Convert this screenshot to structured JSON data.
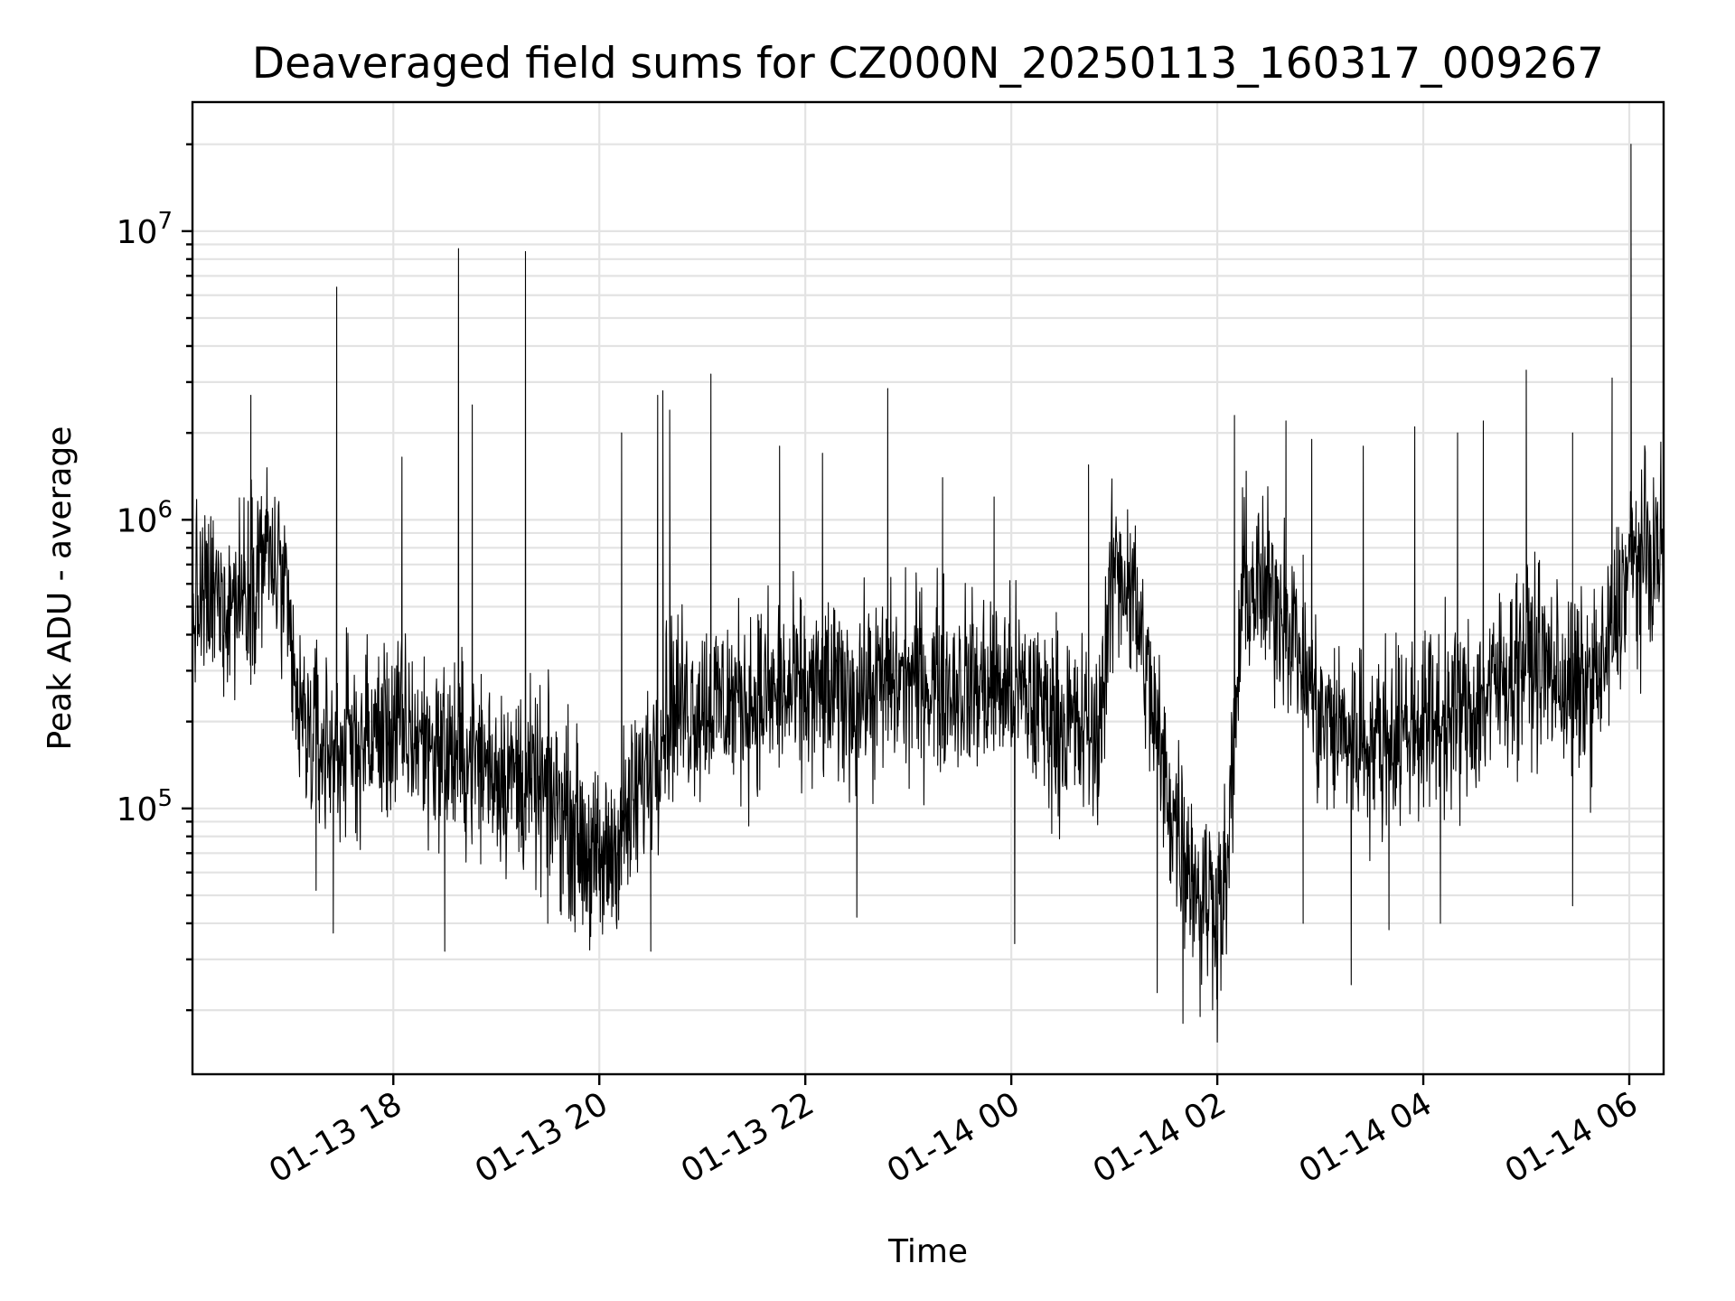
{
  "chart_data": {
    "type": "line",
    "title": "Deaveraged field sums for CZ000N_20250113_160317_009267",
    "xlabel": "Time",
    "ylabel": "Peak ADU - average",
    "yscale": "log",
    "ylim": [
      12000,
      28000000
    ],
    "xlim": [
      "2025-01-13 16:03",
      "2025-01-14 06:20"
    ],
    "grid": true,
    "x_ticks": [
      {
        "value": "2025-01-13 18:00",
        "label": "01-13 18"
      },
      {
        "value": "2025-01-13 20:00",
        "label": "01-13 20"
      },
      {
        "value": "2025-01-13 22:00",
        "label": "01-13 22"
      },
      {
        "value": "2025-01-14 00:00",
        "label": "01-14 00"
      },
      {
        "value": "2025-01-14 02:00",
        "label": "01-14 02"
      },
      {
        "value": "2025-01-14 04:00",
        "label": "01-14 04"
      },
      {
        "value": "2025-01-14 06:00",
        "label": "01-14 06"
      }
    ],
    "y_ticks": [
      {
        "value": 100000,
        "base": "10",
        "exp": "5"
      },
      {
        "value": 1000000,
        "base": "10",
        "exp": "6"
      },
      {
        "value": 10000000,
        "base": "10",
        "exp": "7"
      }
    ],
    "series": [
      {
        "color": "#000000",
        "x": [
          "2025-01-13 16:03",
          "2025-01-13 16:30",
          "2025-01-13 16:45",
          "2025-01-13 16:55",
          "2025-01-13 17:05",
          "2025-01-13 17:20",
          "2025-01-13 17:40",
          "2025-01-13 18:00",
          "2025-01-13 18:20",
          "2025-01-13 18:40",
          "2025-01-13 19:00",
          "2025-01-13 19:20",
          "2025-01-13 19:40",
          "2025-01-13 20:00",
          "2025-01-13 20:20",
          "2025-01-13 20:40",
          "2025-01-13 21:00",
          "2025-01-13 21:30",
          "2025-01-13 22:00",
          "2025-01-13 22:30",
          "2025-01-13 23:00",
          "2025-01-13 23:30",
          "2025-01-14 00:00",
          "2025-01-14 00:30",
          "2025-01-14 00:50",
          "2025-01-14 01:00",
          "2025-01-14 01:10",
          "2025-01-14 01:30",
          "2025-01-14 01:50",
          "2025-01-14 02:05",
          "2025-01-14 02:15",
          "2025-01-14 02:40",
          "2025-01-14 03:00",
          "2025-01-14 03:30",
          "2025-01-14 04:00",
          "2025-01-14 04:30",
          "2025-01-14 05:00",
          "2025-01-14 05:30",
          "2025-01-14 05:45",
          "2025-01-14 06:00",
          "2025-01-14 06:20"
        ],
        "y": [
          500000,
          550000,
          800000,
          600000,
          200000,
          160000,
          170000,
          190000,
          170000,
          150000,
          140000,
          120000,
          100000,
          60000,
          100000,
          230000,
          230000,
          240000,
          250000,
          250000,
          280000,
          270000,
          260000,
          200000,
          170000,
          700000,
          600000,
          120000,
          50000,
          50000,
          600000,
          500000,
          200000,
          170000,
          200000,
          220000,
          350000,
          250000,
          300000,
          700000,
          750000
        ],
        "noise_amplitude_decades": 0.3,
        "spikes": [
          {
            "x": "2025-01-13 16:37",
            "y": 2700000
          },
          {
            "x": "2025-01-13 17:27",
            "y": 6400000
          },
          {
            "x": "2025-01-13 18:05",
            "y": 1650000
          },
          {
            "x": "2025-01-13 18:38",
            "y": 8700000
          },
          {
            "x": "2025-01-13 18:46",
            "y": 2500000
          },
          {
            "x": "2025-01-13 19:17",
            "y": 8500000
          },
          {
            "x": "2025-01-13 20:13",
            "y": 2000000
          },
          {
            "x": "2025-01-13 20:34",
            "y": 2700000
          },
          {
            "x": "2025-01-13 20:37",
            "y": 2800000
          },
          {
            "x": "2025-01-13 20:41",
            "y": 2400000
          },
          {
            "x": "2025-01-13 21:05",
            "y": 3200000
          },
          {
            "x": "2025-01-13 21:45",
            "y": 1800000
          },
          {
            "x": "2025-01-13 22:10",
            "y": 1700000
          },
          {
            "x": "2025-01-13 22:48",
            "y": 2850000
          },
          {
            "x": "2025-01-13 23:20",
            "y": 1400000
          },
          {
            "x": "2025-01-13 23:50",
            "y": 1200000
          },
          {
            "x": "2025-01-14 00:45",
            "y": 1550000
          },
          {
            "x": "2025-01-14 02:10",
            "y": 2300000
          },
          {
            "x": "2025-01-14 02:40",
            "y": 2200000
          },
          {
            "x": "2025-01-14 02:55",
            "y": 1900000
          },
          {
            "x": "2025-01-14 03:25",
            "y": 1800000
          },
          {
            "x": "2025-01-14 03:55",
            "y": 2100000
          },
          {
            "x": "2025-01-14 04:20",
            "y": 2000000
          },
          {
            "x": "2025-01-14 04:35",
            "y": 2200000
          },
          {
            "x": "2025-01-14 05:00",
            "y": 3300000
          },
          {
            "x": "2025-01-14 05:27",
            "y": 2000000
          },
          {
            "x": "2025-01-14 05:50",
            "y": 3100000
          },
          {
            "x": "2025-01-14 06:01",
            "y": 20000000
          }
        ],
        "dips": [
          {
            "x": "2025-01-13 17:15",
            "y": 52000
          },
          {
            "x": "2025-01-13 17:25",
            "y": 37000
          },
          {
            "x": "2025-01-13 18:30",
            "y": 32000
          },
          {
            "x": "2025-01-13 19:30",
            "y": 40000
          },
          {
            "x": "2025-01-13 19:55",
            "y": 36000
          },
          {
            "x": "2025-01-13 20:30",
            "y": 32000
          },
          {
            "x": "2025-01-13 22:30",
            "y": 42000
          },
          {
            "x": "2025-01-14 00:02",
            "y": 34000
          },
          {
            "x": "2025-01-14 01:25",
            "y": 23000
          },
          {
            "x": "2025-01-14 01:40",
            "y": 18000
          },
          {
            "x": "2025-01-14 01:50",
            "y": 19000
          },
          {
            "x": "2025-01-14 02:00",
            "y": 15500
          },
          {
            "x": "2025-01-14 02:50",
            "y": 40000
          },
          {
            "x": "2025-01-14 03:18",
            "y": 24500
          },
          {
            "x": "2025-01-14 03:40",
            "y": 38000
          },
          {
            "x": "2025-01-14 04:10",
            "y": 40000
          },
          {
            "x": "2025-01-14 05:27",
            "y": 46000
          }
        ]
      }
    ]
  }
}
